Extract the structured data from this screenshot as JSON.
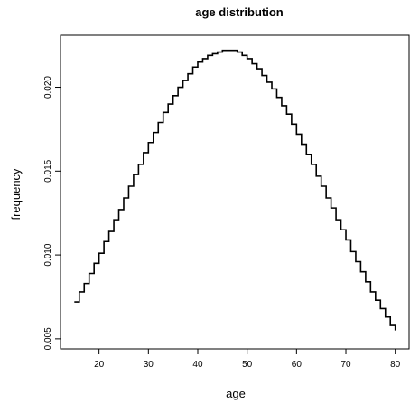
{
  "chart_data": {
    "type": "line",
    "line_style": "step",
    "title": "age distribution",
    "xlabel": "age",
    "ylabel": "frequency",
    "xlim": [
      12.2,
      82.8
    ],
    "ylim": [
      0.0044,
      0.0231
    ],
    "x_ticks": [
      20,
      30,
      40,
      50,
      60,
      70,
      80
    ],
    "x_tick_labels": [
      "20",
      "30",
      "40",
      "50",
      "60",
      "70",
      "80"
    ],
    "y_ticks": [
      0.005,
      0.01,
      0.015,
      0.02
    ],
    "y_tick_labels": [
      "0.005",
      "0.010",
      "0.015",
      "0.020"
    ],
    "grid": false,
    "legend": "none",
    "line_color": "#000000",
    "series": [
      {
        "x": [
          15,
          16,
          17,
          18,
          19,
          20,
          21,
          22,
          23,
          24,
          25,
          26,
          27,
          28,
          29,
          30,
          31,
          32,
          33,
          34,
          35,
          36,
          37,
          38,
          39,
          40,
          41,
          42,
          43,
          44,
          45,
          46,
          47,
          48,
          49,
          50,
          51,
          52,
          53,
          54,
          55,
          56,
          57,
          58,
          59,
          60,
          61,
          62,
          63,
          64,
          65,
          66,
          67,
          68,
          69,
          70,
          71,
          72,
          73,
          74,
          75,
          76,
          77,
          78,
          79,
          80
        ],
        "values": [
          0.0072,
          0.0078,
          0.0083,
          0.0089,
          0.0095,
          0.0101,
          0.0108,
          0.0114,
          0.0121,
          0.0127,
          0.0134,
          0.0141,
          0.0148,
          0.0154,
          0.0161,
          0.0167,
          0.0173,
          0.0179,
          0.0185,
          0.019,
          0.0195,
          0.02,
          0.0204,
          0.0208,
          0.0212,
          0.0215,
          0.0217,
          0.0219,
          0.022,
          0.0221,
          0.0222,
          0.0222,
          0.0222,
          0.0221,
          0.0219,
          0.0217,
          0.0214,
          0.0211,
          0.0207,
          0.0203,
          0.0199,
          0.0194,
          0.0189,
          0.0184,
          0.0178,
          0.0172,
          0.0166,
          0.016,
          0.0154,
          0.0147,
          0.0141,
          0.0134,
          0.0128,
          0.0121,
          0.0115,
          0.0109,
          0.0102,
          0.0096,
          0.009,
          0.0084,
          0.0078,
          0.0073,
          0.0068,
          0.0063,
          0.0058,
          0.0055
        ]
      }
    ]
  }
}
